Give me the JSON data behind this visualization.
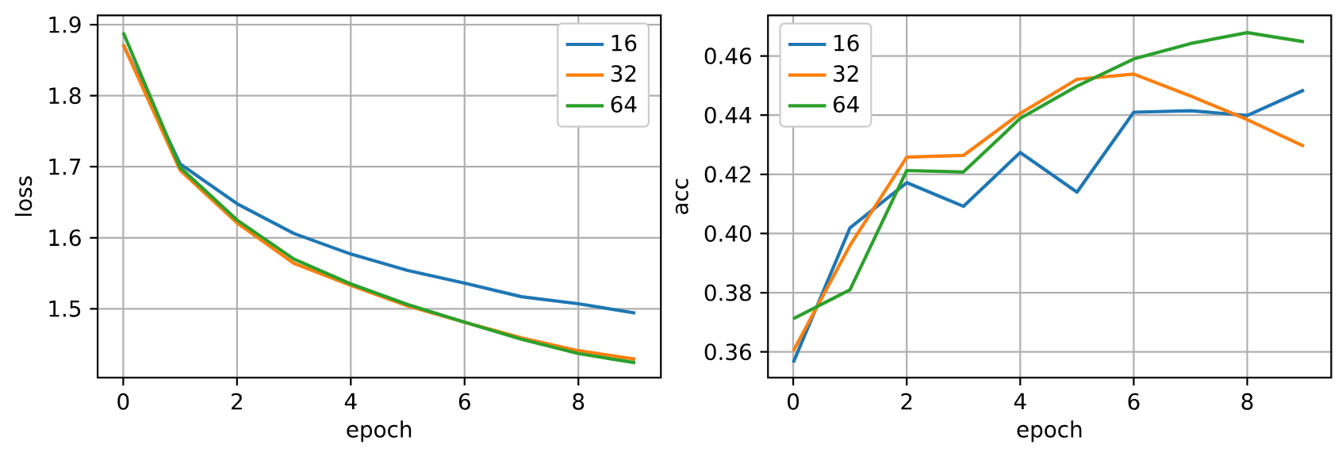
{
  "chart_data": [
    {
      "type": "line",
      "xlabel": "epoch",
      "ylabel": "loss",
      "x": [
        0,
        1,
        2,
        3,
        4,
        5,
        6,
        7,
        8,
        9
      ],
      "xlim": [
        -0.45,
        9.45
      ],
      "xticks": [
        0,
        2,
        4,
        6,
        8
      ],
      "ylim": [
        1.403,
        1.913
      ],
      "yticks": [
        1.5,
        1.6,
        1.7,
        1.8,
        1.9
      ],
      "grid": true,
      "legend": "top right",
      "series": [
        {
          "name": "16",
          "color": "#1f77b4",
          "values": [
            1.872,
            1.704,
            1.648,
            1.606,
            1.577,
            1.554,
            1.536,
            1.517,
            1.507,
            1.494
          ]
        },
        {
          "name": "32",
          "color": "#ff7f0e",
          "values": [
            1.872,
            1.695,
            1.621,
            1.564,
            1.533,
            1.504,
            1.481,
            1.459,
            1.441,
            1.429
          ]
        },
        {
          "name": "64",
          "color": "#2ca02c",
          "values": [
            1.889,
            1.699,
            1.625,
            1.57,
            1.535,
            1.506,
            1.481,
            1.457,
            1.437,
            1.424
          ]
        }
      ]
    },
    {
      "type": "line",
      "xlabel": "epoch",
      "ylabel": "acc",
      "x": [
        0,
        1,
        2,
        3,
        4,
        5,
        6,
        7,
        8,
        9
      ],
      "xlim": [
        -0.445,
        9.48
      ],
      "xticks": [
        0,
        2,
        4,
        6,
        8
      ],
      "ylim": [
        0.3513,
        0.4737
      ],
      "yticks": [
        0.36,
        0.38,
        {
          "value": 0.4,
          "label": "0.40"
        },
        0.42,
        0.44,
        0.46
      ],
      "grid": true,
      "legend": "top left",
      "series": [
        {
          "name": "16",
          "color": "#1f77b4",
          "values": [
            0.3564,
            0.4019,
            0.4172,
            0.4092,
            0.4274,
            0.414,
            0.441,
            0.4415,
            0.4399,
            0.4485
          ]
        },
        {
          "name": "32",
          "color": "#ff7f0e",
          "values": [
            0.3603,
            0.396,
            0.4258,
            0.4264,
            0.4406,
            0.4521,
            0.4539,
            0.4465,
            0.4385,
            0.4295
          ]
        },
        {
          "name": "64",
          "color": "#2ca02c",
          "values": [
            0.3712,
            0.381,
            0.4213,
            0.4208,
            0.4389,
            0.4498,
            0.459,
            0.4642,
            0.4679,
            0.4648
          ]
        }
      ]
    }
  ]
}
